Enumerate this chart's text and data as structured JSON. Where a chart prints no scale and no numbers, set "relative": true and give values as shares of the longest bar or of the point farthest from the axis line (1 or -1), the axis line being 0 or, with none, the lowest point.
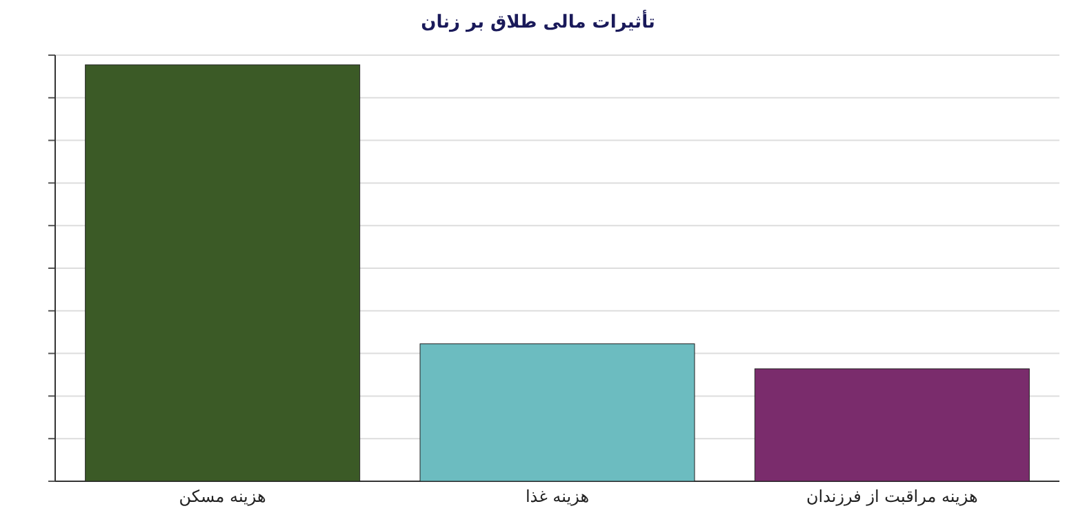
{
  "chart_data": {
    "type": "bar",
    "title": "تأثیرات مالی طلاق بر زنان",
    "categories": [
      "هزینه مسکن",
      "هزینه غذا",
      "هزینه مراقبت از فرزندان"
    ],
    "values": [
      1,
      0.33,
      0.27
    ],
    "colors": [
      "#3b5a26",
      "#6cbcc0",
      "#7a2c6c"
    ],
    "relative": true,
    "grid": true
  }
}
